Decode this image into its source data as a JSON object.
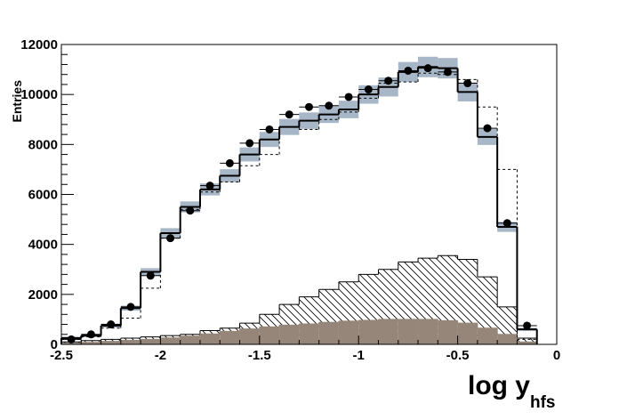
{
  "chart_data": {
    "type": "histogram",
    "y_label": "Entries",
    "x_label": "log y",
    "x_label_sub": "hfs",
    "bins": [
      -2.5,
      -2.4,
      -2.3,
      -2.2,
      -2.1,
      -2.0,
      -1.9,
      -1.8,
      -1.7,
      -1.6,
      -1.5,
      -1.4,
      -1.3,
      -1.2,
      -1.1,
      -1.0,
      -0.9,
      -0.8,
      -0.7,
      -0.6,
      -0.5,
      -0.4,
      -0.3,
      -0.2,
      -0.1
    ],
    "xlim": [
      -2.5,
      0
    ],
    "xticks": [
      -2.5,
      -2,
      -1.5,
      -1,
      -0.5,
      0
    ],
    "ylim": [
      0,
      12000
    ],
    "yticks": [
      0,
      2000,
      4000,
      6000,
      8000,
      10000,
      12000
    ],
    "series": [
      {
        "style": "hatched",
        "color": "#000000",
        "values": [
          100,
          150,
          200,
          250,
          300,
          350,
          400,
          550,
          650,
          850,
          1200,
          1600,
          1900,
          2200,
          2500,
          2800,
          3000,
          3300,
          3450,
          3550,
          3400,
          2700,
          1500,
          250
        ]
      },
      {
        "style": "filled",
        "color": "#968679",
        "values": [
          50,
          80,
          120,
          160,
          200,
          260,
          330,
          420,
          520,
          620,
          700,
          770,
          820,
          880,
          930,
          960,
          1000,
          1000,
          1000,
          950,
          850,
          650,
          400,
          100
        ]
      },
      {
        "style": "dashed",
        "color": "#000000",
        "values": [
          200,
          300,
          650,
          1050,
          2250,
          4250,
          5400,
          6100,
          6500,
          7150,
          7600,
          8700,
          8600,
          9000,
          9300,
          9850,
          10450,
          10500,
          10850,
          10800,
          10600,
          9500,
          7000,
          200
        ]
      },
      {
        "style": "solid",
        "color": "#000000",
        "band_color": "#a7b7c7",
        "values": [
          250,
          350,
          750,
          1450,
          2900,
          4450,
          5500,
          6200,
          6750,
          7600,
          8200,
          8700,
          8950,
          9200,
          9400,
          10000,
          10300,
          10900,
          11100,
          11050,
          10100,
          8300,
          4700,
          600
        ],
        "errors": [
          60,
          60,
          80,
          100,
          150,
          200,
          220,
          240,
          260,
          280,
          300,
          320,
          330,
          340,
          350,
          370,
          380,
          400,
          410,
          410,
          380,
          320,
          200,
          60
        ]
      },
      {
        "style": "points",
        "color": "#000000",
        "values": [
          200,
          400,
          800,
          1500,
          2750,
          4250,
          5350,
          6350,
          7250,
          8050,
          8600,
          9200,
          9500,
          9550,
          9900,
          10200,
          10550,
          10950,
          11050,
          10900,
          10450,
          8650,
          4850,
          750
        ]
      }
    ]
  }
}
